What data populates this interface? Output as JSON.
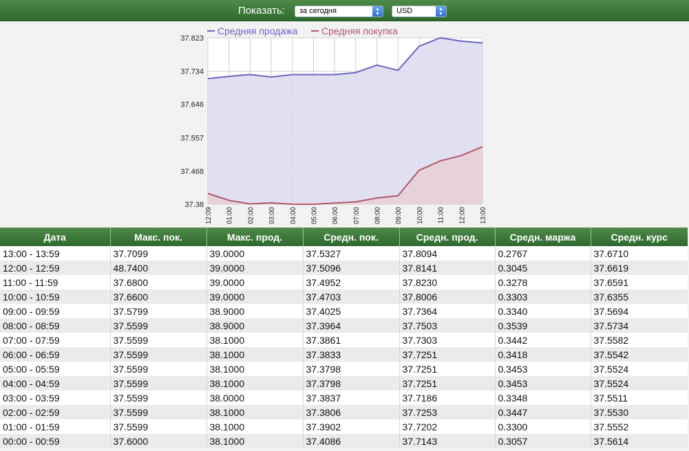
{
  "toolbar": {
    "show_label": "Показать:",
    "period_select": "за сегодня",
    "currency_select": "USD"
  },
  "chart_data": {
    "type": "area",
    "categories": [
      "12:09",
      "01:00",
      "02:00",
      "03:00",
      "04:00",
      "05:00",
      "06:00",
      "07:00",
      "08:00",
      "09:00",
      "10:00",
      "11:00",
      "12:00",
      "13:00"
    ],
    "series": [
      {
        "name": "Средняя продажа",
        "color": "#6b63c2",
        "fill": "#dcdaf0",
        "values": [
          37.7143,
          37.7202,
          37.7253,
          37.7186,
          37.7251,
          37.7251,
          37.7251,
          37.7303,
          37.7503,
          37.7364,
          37.8006,
          37.823,
          37.8141,
          37.8094
        ]
      },
      {
        "name": "Средняя покупка",
        "color": "#b0566a",
        "fill": "#e8cfd6",
        "values": [
          37.4086,
          37.3902,
          37.3806,
          37.3837,
          37.3798,
          37.3798,
          37.3833,
          37.3861,
          37.3964,
          37.4025,
          37.4703,
          37.4952,
          37.5096,
          37.5327
        ]
      }
    ],
    "yticks": [
      "37.823",
      "37.734",
      "37.646",
      "37.557",
      "37.468",
      "37.38"
    ],
    "ylim": [
      37.38,
      37.823
    ],
    "grid": true,
    "legend": "top"
  },
  "table": {
    "columns": [
      "Дата",
      "Макс. пок.",
      "Макс. прод.",
      "Средн. пок.",
      "Средн. прод.",
      "Средн. маржа",
      "Средн. курс"
    ],
    "rows": [
      [
        "13:00 - 13:59",
        "37.7099",
        "39.0000",
        "37.5327",
        "37.8094",
        "0.2767",
        "37.6710"
      ],
      [
        "12:00 - 12:59",
        "48.7400",
        "39.0000",
        "37.5096",
        "37.8141",
        "0.3045",
        "37.6619"
      ],
      [
        "11:00 - 11:59",
        "37.6800",
        "39.0000",
        "37.4952",
        "37.8230",
        "0.3278",
        "37.6591"
      ],
      [
        "10:00 - 10:59",
        "37.6600",
        "39.0000",
        "37.4703",
        "37.8006",
        "0.3303",
        "37.6355"
      ],
      [
        "09:00 - 09:59",
        "37.5799",
        "38.9000",
        "37.4025",
        "37.7364",
        "0.3340",
        "37.5694"
      ],
      [
        "08:00 - 08:59",
        "37.5599",
        "38.9000",
        "37.3964",
        "37.7503",
        "0.3539",
        "37.5734"
      ],
      [
        "07:00 - 07:59",
        "37.5599",
        "38.1000",
        "37.3861",
        "37.7303",
        "0.3442",
        "37.5582"
      ],
      [
        "06:00 - 06:59",
        "37.5599",
        "38.1000",
        "37.3833",
        "37.7251",
        "0.3418",
        "37.5542"
      ],
      [
        "05:00 - 05:59",
        "37.5599",
        "38.1000",
        "37.3798",
        "37.7251",
        "0.3453",
        "37.5524"
      ],
      [
        "04:00 - 04:59",
        "37.5599",
        "38.1000",
        "37.3798",
        "37.7251",
        "0.3453",
        "37.5524"
      ],
      [
        "03:00 - 03:59",
        "37.5599",
        "38.0000",
        "37.3837",
        "37.7186",
        "0.3348",
        "37.5511"
      ],
      [
        "02:00 - 02:59",
        "37.5599",
        "38.1000",
        "37.3806",
        "37.7253",
        "0.3447",
        "37.5530"
      ],
      [
        "01:00 - 01:59",
        "37.5599",
        "38.1000",
        "37.3902",
        "37.7202",
        "0.3300",
        "37.5552"
      ],
      [
        "00:00 - 00:59",
        "37.6000",
        "38.1000",
        "37.4086",
        "37.7143",
        "0.3057",
        "37.5614"
      ]
    ]
  }
}
